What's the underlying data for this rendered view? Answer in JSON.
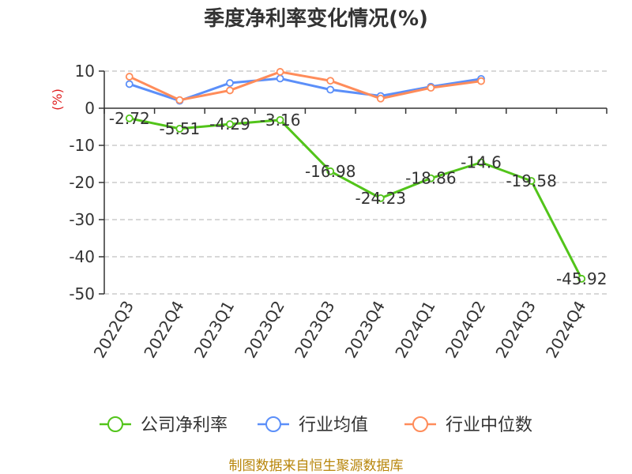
{
  "chart_data": {
    "type": "line",
    "title": "季度净利率变化情况(%)",
    "ylabel": "(%)",
    "ylim": [
      -50,
      10
    ],
    "yticks": [
      10,
      0,
      -10,
      -20,
      -30,
      -40,
      -50
    ],
    "categories": [
      "2022Q3",
      "2022Q4",
      "2023Q1",
      "2023Q2",
      "2023Q3",
      "2023Q4",
      "2024Q1",
      "2024Q2",
      "2024Q3",
      "2024Q4"
    ],
    "grid": true,
    "legend_position": "bottom",
    "series": [
      {
        "name": "公司净利率",
        "color": "#52c41a",
        "values": [
          -2.72,
          -5.51,
          -4.29,
          -3.16,
          -16.98,
          -24.23,
          -18.86,
          -14.6,
          -19.58,
          -45.92
        ],
        "labels": [
          "-2.72",
          "-5.51",
          "-4.29",
          "-3.16",
          "-16.98",
          "-24.23",
          "-18.86",
          "-14.6",
          "-19.58",
          "-45.92"
        ]
      },
      {
        "name": "行业均值",
        "color": "#5b8ff9",
        "values": [
          6.5,
          2.0,
          6.8,
          8.0,
          5.0,
          3.3,
          5.8,
          7.9,
          null,
          null
        ]
      },
      {
        "name": "行业中位数",
        "color": "#ff8c5a",
        "values": [
          8.5,
          2.2,
          4.8,
          9.8,
          7.4,
          2.6,
          5.5,
          7.3,
          null,
          null
        ]
      }
    ]
  },
  "footer": "制图数据来自恒生聚源数据库"
}
